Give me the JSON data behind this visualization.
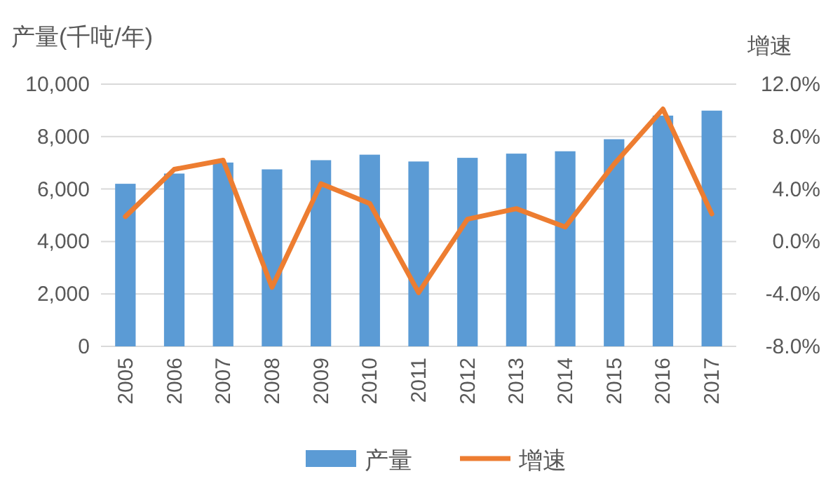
{
  "chart_data": {
    "type": "bar",
    "ylabel": "产量(千吨/年)",
    "y2label": "增速",
    "categories": [
      "2005",
      "2006",
      "2007",
      "2008",
      "2009",
      "2010",
      "2011",
      "2012",
      "2013",
      "2014",
      "2015",
      "2016",
      "2017"
    ],
    "series": [
      {
        "name": "产量",
        "color": "#5b9bd5",
        "values": [
          6200,
          6590,
          7010,
          6750,
          7100,
          7310,
          7050,
          7190,
          7350,
          7440,
          7900,
          8800,
          8990
        ]
      },
      {
        "name": "增速",
        "type": "line",
        "axis": "y2",
        "color": "#ed7d31",
        "values": [
          1.9,
          5.5,
          6.2,
          -3.5,
          4.4,
          2.9,
          -3.9,
          1.7,
          2.5,
          1.1,
          5.9,
          10.1,
          2.1
        ]
      }
    ],
    "ylim": [
      0,
      10000
    ],
    "yticks": [
      {
        "value": 0,
        "label": "0"
      },
      {
        "value": 2000,
        "label": "2,000"
      },
      {
        "value": 4000,
        "label": "4,000"
      },
      {
        "value": 6000,
        "label": "6,000"
      },
      {
        "value": 8000,
        "label": "8,000"
      },
      {
        "value": 10000,
        "label": "10,000"
      }
    ],
    "y2lim": [
      -8,
      12
    ],
    "y2ticks": [
      {
        "value": -8,
        "label": "-8.0%"
      },
      {
        "value": -4,
        "label": "-4.0%"
      },
      {
        "value": 0,
        "label": "0.0%"
      },
      {
        "value": 4,
        "label": "4.0%"
      },
      {
        "value": 8,
        "label": "8.0%"
      },
      {
        "value": 12,
        "label": "12.0%"
      }
    ],
    "grid": "y",
    "legend": "bottom",
    "marker": "none"
  }
}
